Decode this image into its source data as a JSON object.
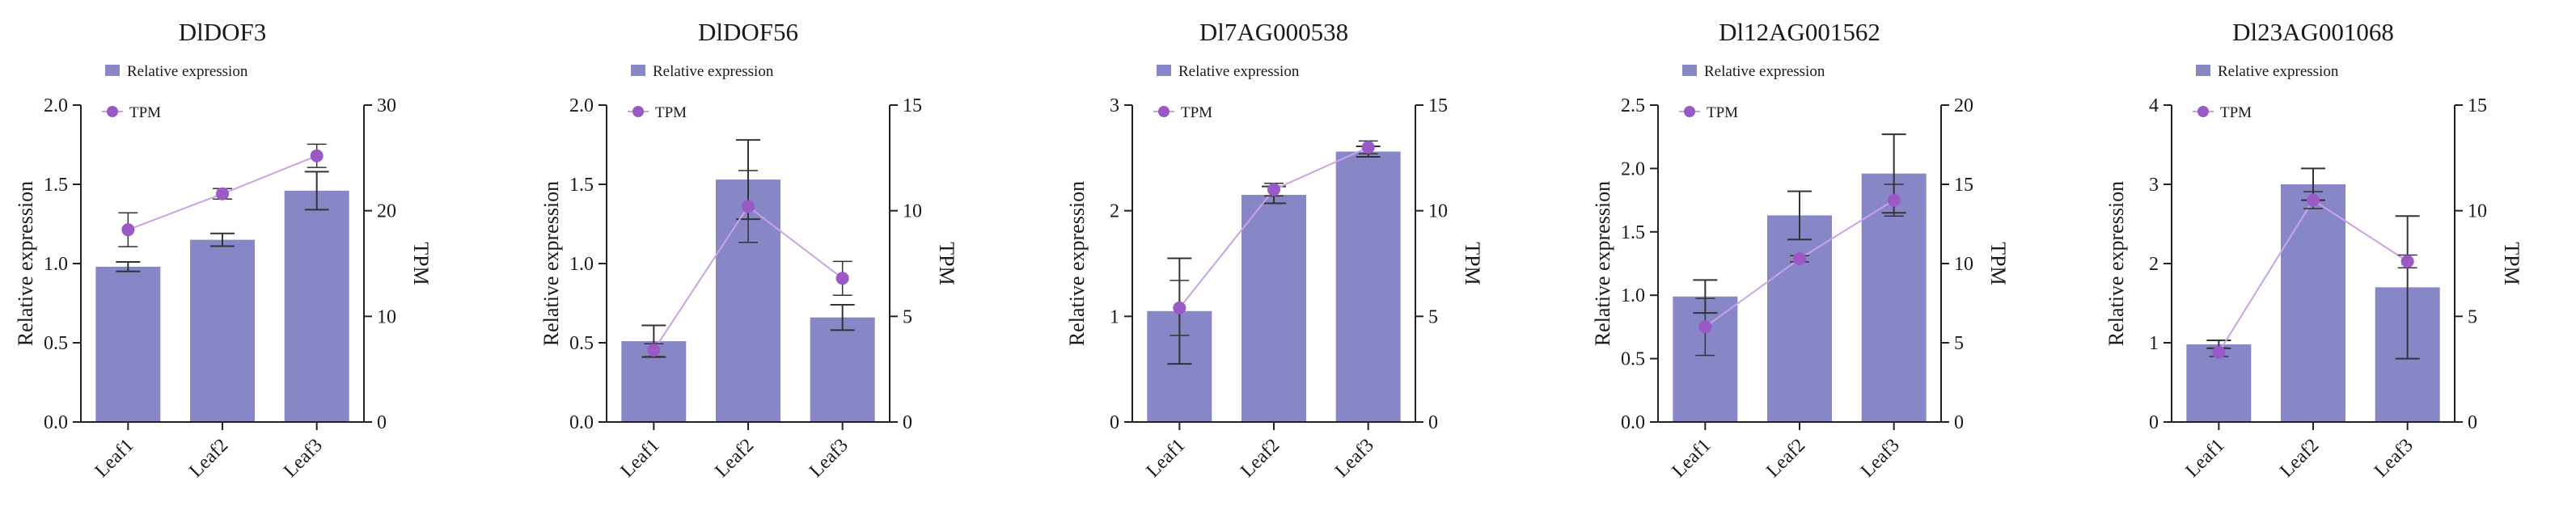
{
  "colors": {
    "bar": "#8787c8",
    "tpm_line": "#c9a3e6",
    "tpm_marker": "#9b59c8",
    "error_bar": "#333333",
    "axis": "#222222"
  },
  "chart_data": [
    {
      "type": "bar",
      "title": "DlDOF3",
      "categories": [
        "Leaf1",
        "Leaf2",
        "Leaf3"
      ],
      "xlabel": "",
      "ylabel": "Relative expression",
      "y2label": "TPM",
      "ylim": [
        0,
        2.0
      ],
      "y2lim": [
        0,
        30
      ],
      "yticks": [
        "0.0",
        "0.5",
        "1.0",
        "1.5",
        "2.0"
      ],
      "y2ticks": [
        "0",
        "10",
        "20",
        "30"
      ],
      "legend": [
        "Relative expression",
        "TPM"
      ],
      "series": [
        {
          "name": "Relative expression",
          "axis": "left",
          "values": [
            0.98,
            1.15,
            1.46
          ],
          "errors": [
            0.03,
            0.04,
            0.12
          ]
        },
        {
          "name": "TPM",
          "axis": "right",
          "kind": "line",
          "values": [
            18.2,
            21.6,
            25.2
          ],
          "errors": [
            1.6,
            0.5,
            1.1
          ]
        }
      ]
    },
    {
      "type": "bar",
      "title": "DlDOF56",
      "categories": [
        "Leaf1",
        "Leaf2",
        "Leaf3"
      ],
      "xlabel": "",
      "ylabel": "Relative expression",
      "y2label": "TPM",
      "ylim": [
        0,
        2.0
      ],
      "y2lim": [
        0,
        15
      ],
      "yticks": [
        "0.0",
        "0.5",
        "1.0",
        "1.5",
        "2.0"
      ],
      "y2ticks": [
        "0",
        "5",
        "10",
        "15"
      ],
      "legend": [
        "Relative expression",
        "TPM"
      ],
      "series": [
        {
          "name": "Relative expression",
          "axis": "left",
          "values": [
            0.51,
            1.53,
            0.66
          ],
          "errors": [
            0.1,
            0.25,
            0.08
          ]
        },
        {
          "name": "TPM",
          "axis": "right",
          "kind": "line",
          "values": [
            3.4,
            10.2,
            6.8
          ],
          "errors": [
            0.3,
            1.7,
            0.8
          ]
        }
      ]
    },
    {
      "type": "bar",
      "title": "Dl7AG000538",
      "categories": [
        "Leaf1",
        "Leaf2",
        "Leaf3"
      ],
      "xlabel": "",
      "ylabel": "Relative expression",
      "y2label": "TPM",
      "ylim": [
        0,
        3
      ],
      "y2lim": [
        0,
        15
      ],
      "yticks": [
        "0",
        "1",
        "2",
        "3"
      ],
      "y2ticks": [
        "0",
        "5",
        "10",
        "15"
      ],
      "legend": [
        "Relative expression",
        "TPM"
      ],
      "series": [
        {
          "name": "Relative expression",
          "axis": "left",
          "values": [
            1.05,
            2.15,
            2.56
          ],
          "errors": [
            0.5,
            0.08,
            0.05
          ]
        },
        {
          "name": "TPM",
          "axis": "right",
          "kind": "line",
          "values": [
            5.4,
            11.0,
            13.0
          ],
          "errors": [
            1.3,
            0.3,
            0.3
          ]
        }
      ]
    },
    {
      "type": "bar",
      "title": "Dl12AG001562",
      "categories": [
        "Leaf1",
        "Leaf2",
        "Leaf3"
      ],
      "xlabel": "",
      "ylabel": "Relative expression",
      "y2label": "TPM",
      "ylim": [
        0,
        2.5
      ],
      "y2lim": [
        0,
        20
      ],
      "yticks": [
        "0.0",
        "0.5",
        "1.0",
        "1.5",
        "2.0",
        "2.5"
      ],
      "y2ticks": [
        "0",
        "5",
        "10",
        "15",
        "20"
      ],
      "legend": [
        "Relative expression",
        "TPM"
      ],
      "series": [
        {
          "name": "Relative expression",
          "axis": "left",
          "values": [
            0.99,
            1.63,
            1.96
          ],
          "errors": [
            0.13,
            0.19,
            0.31
          ]
        },
        {
          "name": "TPM",
          "axis": "right",
          "kind": "line",
          "values": [
            6.0,
            10.3,
            14.0
          ],
          "errors": [
            1.8,
            0.2,
            1.0
          ]
        }
      ]
    },
    {
      "type": "bar",
      "title": "Dl23AG001068",
      "categories": [
        "Leaf1",
        "Leaf2",
        "Leaf3"
      ],
      "xlabel": "",
      "ylabel": "Relative expression",
      "y2label": "TPM",
      "ylim": [
        0,
        4
      ],
      "y2lim": [
        0,
        15
      ],
      "yticks": [
        "0",
        "1",
        "2",
        "3",
        "4"
      ],
      "y2ticks": [
        "0",
        "5",
        "10",
        "15"
      ],
      "legend": [
        "Relative expression",
        "TPM"
      ],
      "series": [
        {
          "name": "Relative expression",
          "axis": "left",
          "values": [
            0.98,
            3.0,
            1.7
          ],
          "errors": [
            0.05,
            0.2,
            0.9
          ]
        },
        {
          "name": "TPM",
          "axis": "right",
          "kind": "line",
          "values": [
            3.3,
            10.5,
            7.6
          ],
          "errors": [
            0.2,
            0.4,
            0.3
          ]
        }
      ]
    }
  ]
}
